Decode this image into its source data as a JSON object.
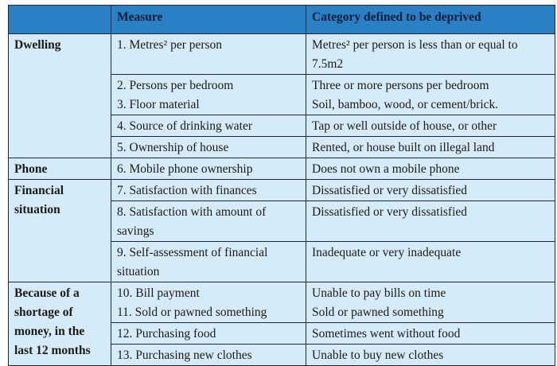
{
  "header": {
    "category": "",
    "measure": "Measure",
    "deprived": "Category defined to be deprived"
  },
  "groups": {
    "dwelling": "Dwelling",
    "phone": "Phone",
    "financial": [
      "Financial",
      "situation"
    ],
    "shortage": [
      "Because of a",
      "shortage of",
      "money, in the",
      "last 12 months"
    ]
  },
  "rows": [
    {
      "measure": [
        "1. Metres² per person"
      ],
      "deprived": [
        "Metres² per person is less than or equal to",
        "7.5m2"
      ]
    },
    {
      "measure": [
        "2. Persons per bedroom",
        "3. Floor material"
      ],
      "deprived": [
        "Three or more persons per bedroom",
        "Soil, bamboo, wood, or cement/brick."
      ]
    },
    {
      "measure": [
        "4. Source of drinking water"
      ],
      "deprived": [
        "Tap or well outside of house, or other"
      ]
    },
    {
      "measure": [
        "5. Ownership of house"
      ],
      "deprived": [
        "Rented, or house built on illegal land"
      ]
    },
    {
      "measure": [
        "6. Mobile phone ownership"
      ],
      "deprived": [
        "Does not own a mobile phone"
      ]
    },
    {
      "measure": [
        "7. Satisfaction with finances"
      ],
      "deprived": [
        "Dissatisfied or very dissatisfied"
      ]
    },
    {
      "measure": [
        "8. Satisfaction with amount of",
        "savings"
      ],
      "deprived": [
        "Dissatisfied or very dissatisfied"
      ]
    },
    {
      "measure": [
        "9. Self-assessment of financial",
        "situation"
      ],
      "deprived": [
        "Inadequate or very inadequate"
      ]
    },
    {
      "measure": [
        "10. Bill payment",
        "11. Sold or pawned something"
      ],
      "deprived": [
        "Unable to pay bills on time",
        "Sold or pawned something"
      ]
    },
    {
      "measure": [
        "12. Purchasing food"
      ],
      "deprived": [
        "Sometimes went without food"
      ]
    },
    {
      "measure": [
        "13. Purchasing new clothes"
      ],
      "deprived": [
        "Unable to buy new clothes"
      ]
    }
  ],
  "colors": {
    "header_bg": "#2b7fc3",
    "body_bg": "#d6ebf8",
    "header_text": "#0d1e3d"
  }
}
